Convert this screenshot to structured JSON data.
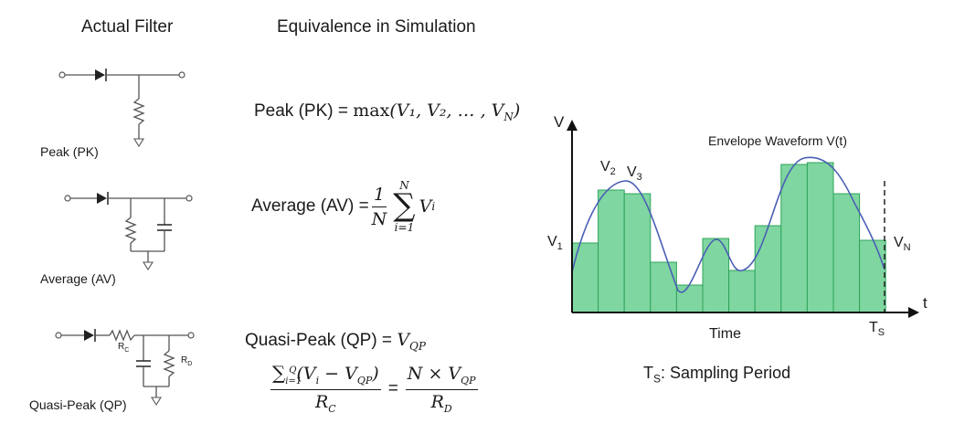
{
  "headings": {
    "actual_filter": "Actual Filter",
    "equivalence": "Equivalence in Simulation"
  },
  "circuits": {
    "peak_label": "Peak (PK)",
    "average_label": "Average (AV)",
    "qp_label": "Quasi-Peak (QP)",
    "rc_label": "R",
    "rc_sub": "C",
    "rd_label": "R",
    "rd_sub": "D"
  },
  "equations": {
    "peak_lhs": "Peak (PK) = ",
    "peak_fn": "max",
    "peak_args": "(V₁, V₂, … , V",
    "peak_args_sub": "N",
    "average_lhs": "Average (AV) = ",
    "average_frac_num": "1",
    "average_frac_den": "N",
    "average_sum_upper": "N",
    "average_sum_lower": "i=1",
    "average_term": "V",
    "average_term_sub": "i",
    "qp_lhs": "Quasi-Peak (QP) = ",
    "qp_rhs": "V",
    "qp_rhs_sub": "QP",
    "qp_sum_upper": "Q",
    "qp_sum_lower": "i=1",
    "qp_num_left": "(V",
    "qp_num_left_sub": "i",
    "qp_num_mid": " − V",
    "qp_num_mid_sub": "QP",
    "qp_num_right": ")",
    "qp_den_left": "R",
    "qp_den_left_sub": "C",
    "qp_equals": "=",
    "qp_num_right_frac": "N × V",
    "qp_num_right_frac_sub": "QP",
    "qp_den_right": "R",
    "qp_den_right_sub": "D"
  },
  "waveform": {
    "y_axis_label": "V",
    "x_axis_label": "t",
    "time_label": "Time",
    "envelope_label": "Envelope Waveform V(t)",
    "v1_label": "V",
    "v1_sub": "1",
    "v2_label": "V",
    "v2_sub": "2",
    "v3_label": "V",
    "v3_sub": "3",
    "vn_label": "V",
    "vn_sub": "N",
    "ts_label": "T",
    "ts_sub": "S",
    "sampling_caption_prefix": "T",
    "sampling_caption_sub": "S",
    "sampling_caption_rest": ": Sampling Period",
    "bar_fill": "#7fd6a0",
    "bar_stroke": "#2fa45a",
    "envelope_color": "#4a5fb5",
    "axis_color": "#111111"
  }
}
